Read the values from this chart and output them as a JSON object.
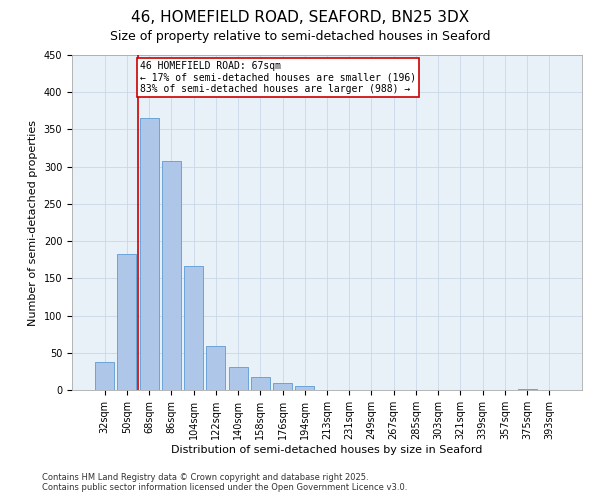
{
  "title_line1": "46, HOMEFIELD ROAD, SEAFORD, BN25 3DX",
  "title_line2": "Size of property relative to semi-detached houses in Seaford",
  "xlabel": "Distribution of semi-detached houses by size in Seaford",
  "ylabel": "Number of semi-detached properties",
  "categories": [
    "32sqm",
    "50sqm",
    "68sqm",
    "86sqm",
    "104sqm",
    "122sqm",
    "140sqm",
    "158sqm",
    "176sqm",
    "194sqm",
    "213sqm",
    "231sqm",
    "249sqm",
    "267sqm",
    "285sqm",
    "303sqm",
    "321sqm",
    "339sqm",
    "357sqm",
    "375sqm",
    "393sqm"
  ],
  "values": [
    38,
    183,
    365,
    308,
    167,
    59,
    31,
    18,
    9,
    6,
    0,
    0,
    0,
    0,
    0,
    0,
    0,
    0,
    0,
    1,
    0
  ],
  "bar_color": "#aec6e8",
  "bar_edge_color": "#5b9bd5",
  "marker_color": "#cc0000",
  "annotation_title": "46 HOMEFIELD ROAD: 67sqm",
  "annotation_line2": "← 17% of semi-detached houses are smaller (196)",
  "annotation_line3": "83% of semi-detached houses are larger (988) →",
  "annotation_box_color": "#cc0000",
  "ylim": [
    0,
    450
  ],
  "yticks": [
    0,
    50,
    100,
    150,
    200,
    250,
    300,
    350,
    400,
    450
  ],
  "grid_color": "#c8d8e8",
  "bg_color": "#e8f0f8",
  "footer_line1": "Contains HM Land Registry data © Crown copyright and database right 2025.",
  "footer_line2": "Contains public sector information licensed under the Open Government Licence v3.0.",
  "title_fontsize": 11,
  "subtitle_fontsize": 9,
  "axis_label_fontsize": 8,
  "tick_fontsize": 7,
  "annotation_fontsize": 7,
  "footer_fontsize": 6
}
